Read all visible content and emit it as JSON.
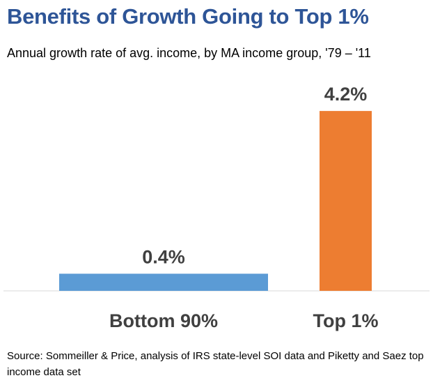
{
  "chart_data": {
    "type": "bar",
    "title": "Benefits of Growth Going to Top 1%",
    "subtitle": "Annual growth rate of avg. income, by MA income group, '79 – '11",
    "categories": [
      "Bottom 90%",
      "Top 1%"
    ],
    "values": [
      0.4,
      4.2
    ],
    "data_labels": [
      "0.4%",
      "4.2%"
    ],
    "colors": [
      "#5b9bd5",
      "#ed7d31"
    ],
    "xlabel": "",
    "ylabel": "",
    "ylim": [
      0,
      5
    ],
    "grid": false,
    "legend": "none"
  },
  "source": "Source: Sommeiller & Price, analysis of IRS state-level SOI data and Piketty and Saez top income data set"
}
